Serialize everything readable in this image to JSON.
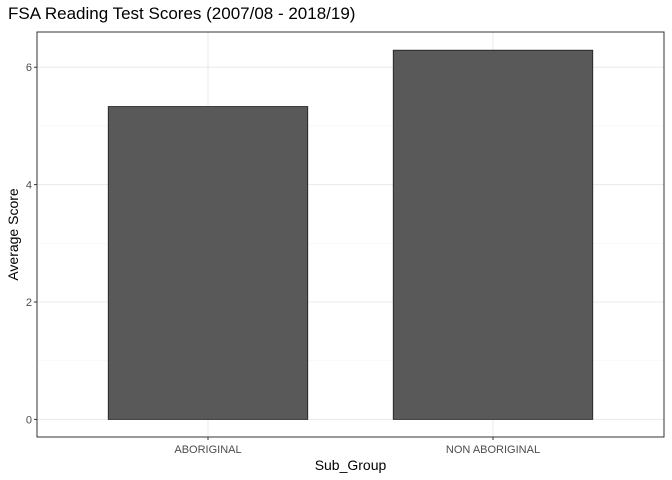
{
  "chart_data": {
    "type": "bar",
    "title": "FSA Reading Test Scores (2007/08 - 2018/19)",
    "xlabel": "Sub_Group",
    "ylabel": "Average Score",
    "categories": [
      "ABORIGINAL",
      "NON ABORIGINAL"
    ],
    "values": [
      5.33,
      6.29
    ],
    "ylim": [
      -0.3,
      6.6
    ],
    "yticks": [
      "0",
      "2",
      "4",
      "6"
    ],
    "grid": true,
    "legend": "none",
    "colors": {
      "bar_fill": "#595959",
      "bar_stroke": "#1a1a1a",
      "grid_major": "#ebebeb",
      "grid_minor": "#f5f5f5",
      "panel_border": "#333333",
      "tick_text": "#4d4d4d"
    }
  }
}
